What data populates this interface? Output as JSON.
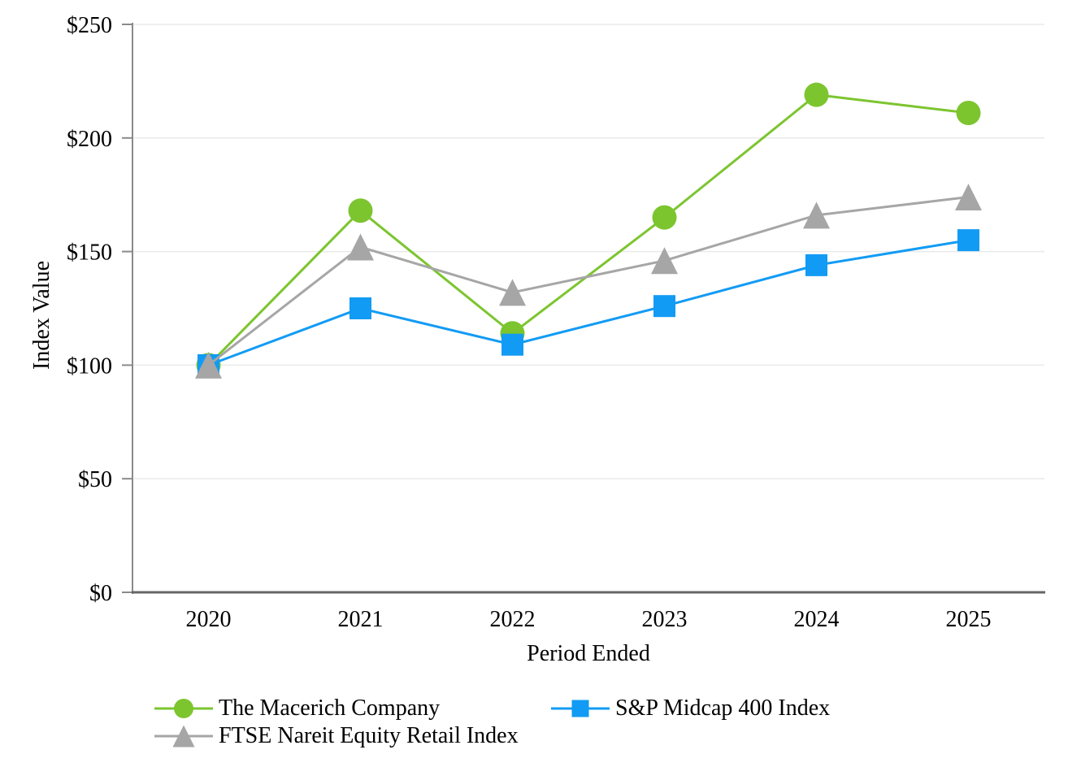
{
  "chart_data": {
    "type": "line",
    "title": "",
    "categories": [
      "2020",
      "2021",
      "2022",
      "2023",
      "2024",
      "2025"
    ],
    "series": [
      {
        "name": "The Macerich Company",
        "marker": "circle",
        "color": "#7CC52F",
        "values": [
          100,
          168,
          114,
          165,
          219,
          211
        ]
      },
      {
        "name": "S&P Midcap 400 Index",
        "marker": "square",
        "color": "#129BF4",
        "values": [
          100,
          125,
          109,
          126,
          144,
          155
        ]
      },
      {
        "name": "FTSE Nareit Equity Retail Index",
        "marker": "triangle",
        "color": "#A6A6A6",
        "values": [
          100,
          152,
          132,
          146,
          166,
          174
        ]
      }
    ],
    "xlabel": "Period Ended",
    "ylabel": "Index Value",
    "ylim": [
      0,
      250
    ],
    "yticks": [
      0,
      50,
      100,
      150,
      200,
      250
    ],
    "ytick_labels": [
      "$0",
      "$50",
      "$100",
      "$150",
      "$200",
      "$250"
    ],
    "grid": true,
    "legend_position": "bottom",
    "legend_columns": 2,
    "style": {
      "background": "#FFFFFF",
      "grid_color": "#EAEAEA",
      "y_axis_color": "#8A8A8A",
      "x_axis_color": "#666666",
      "text_color": "#000000"
    }
  }
}
